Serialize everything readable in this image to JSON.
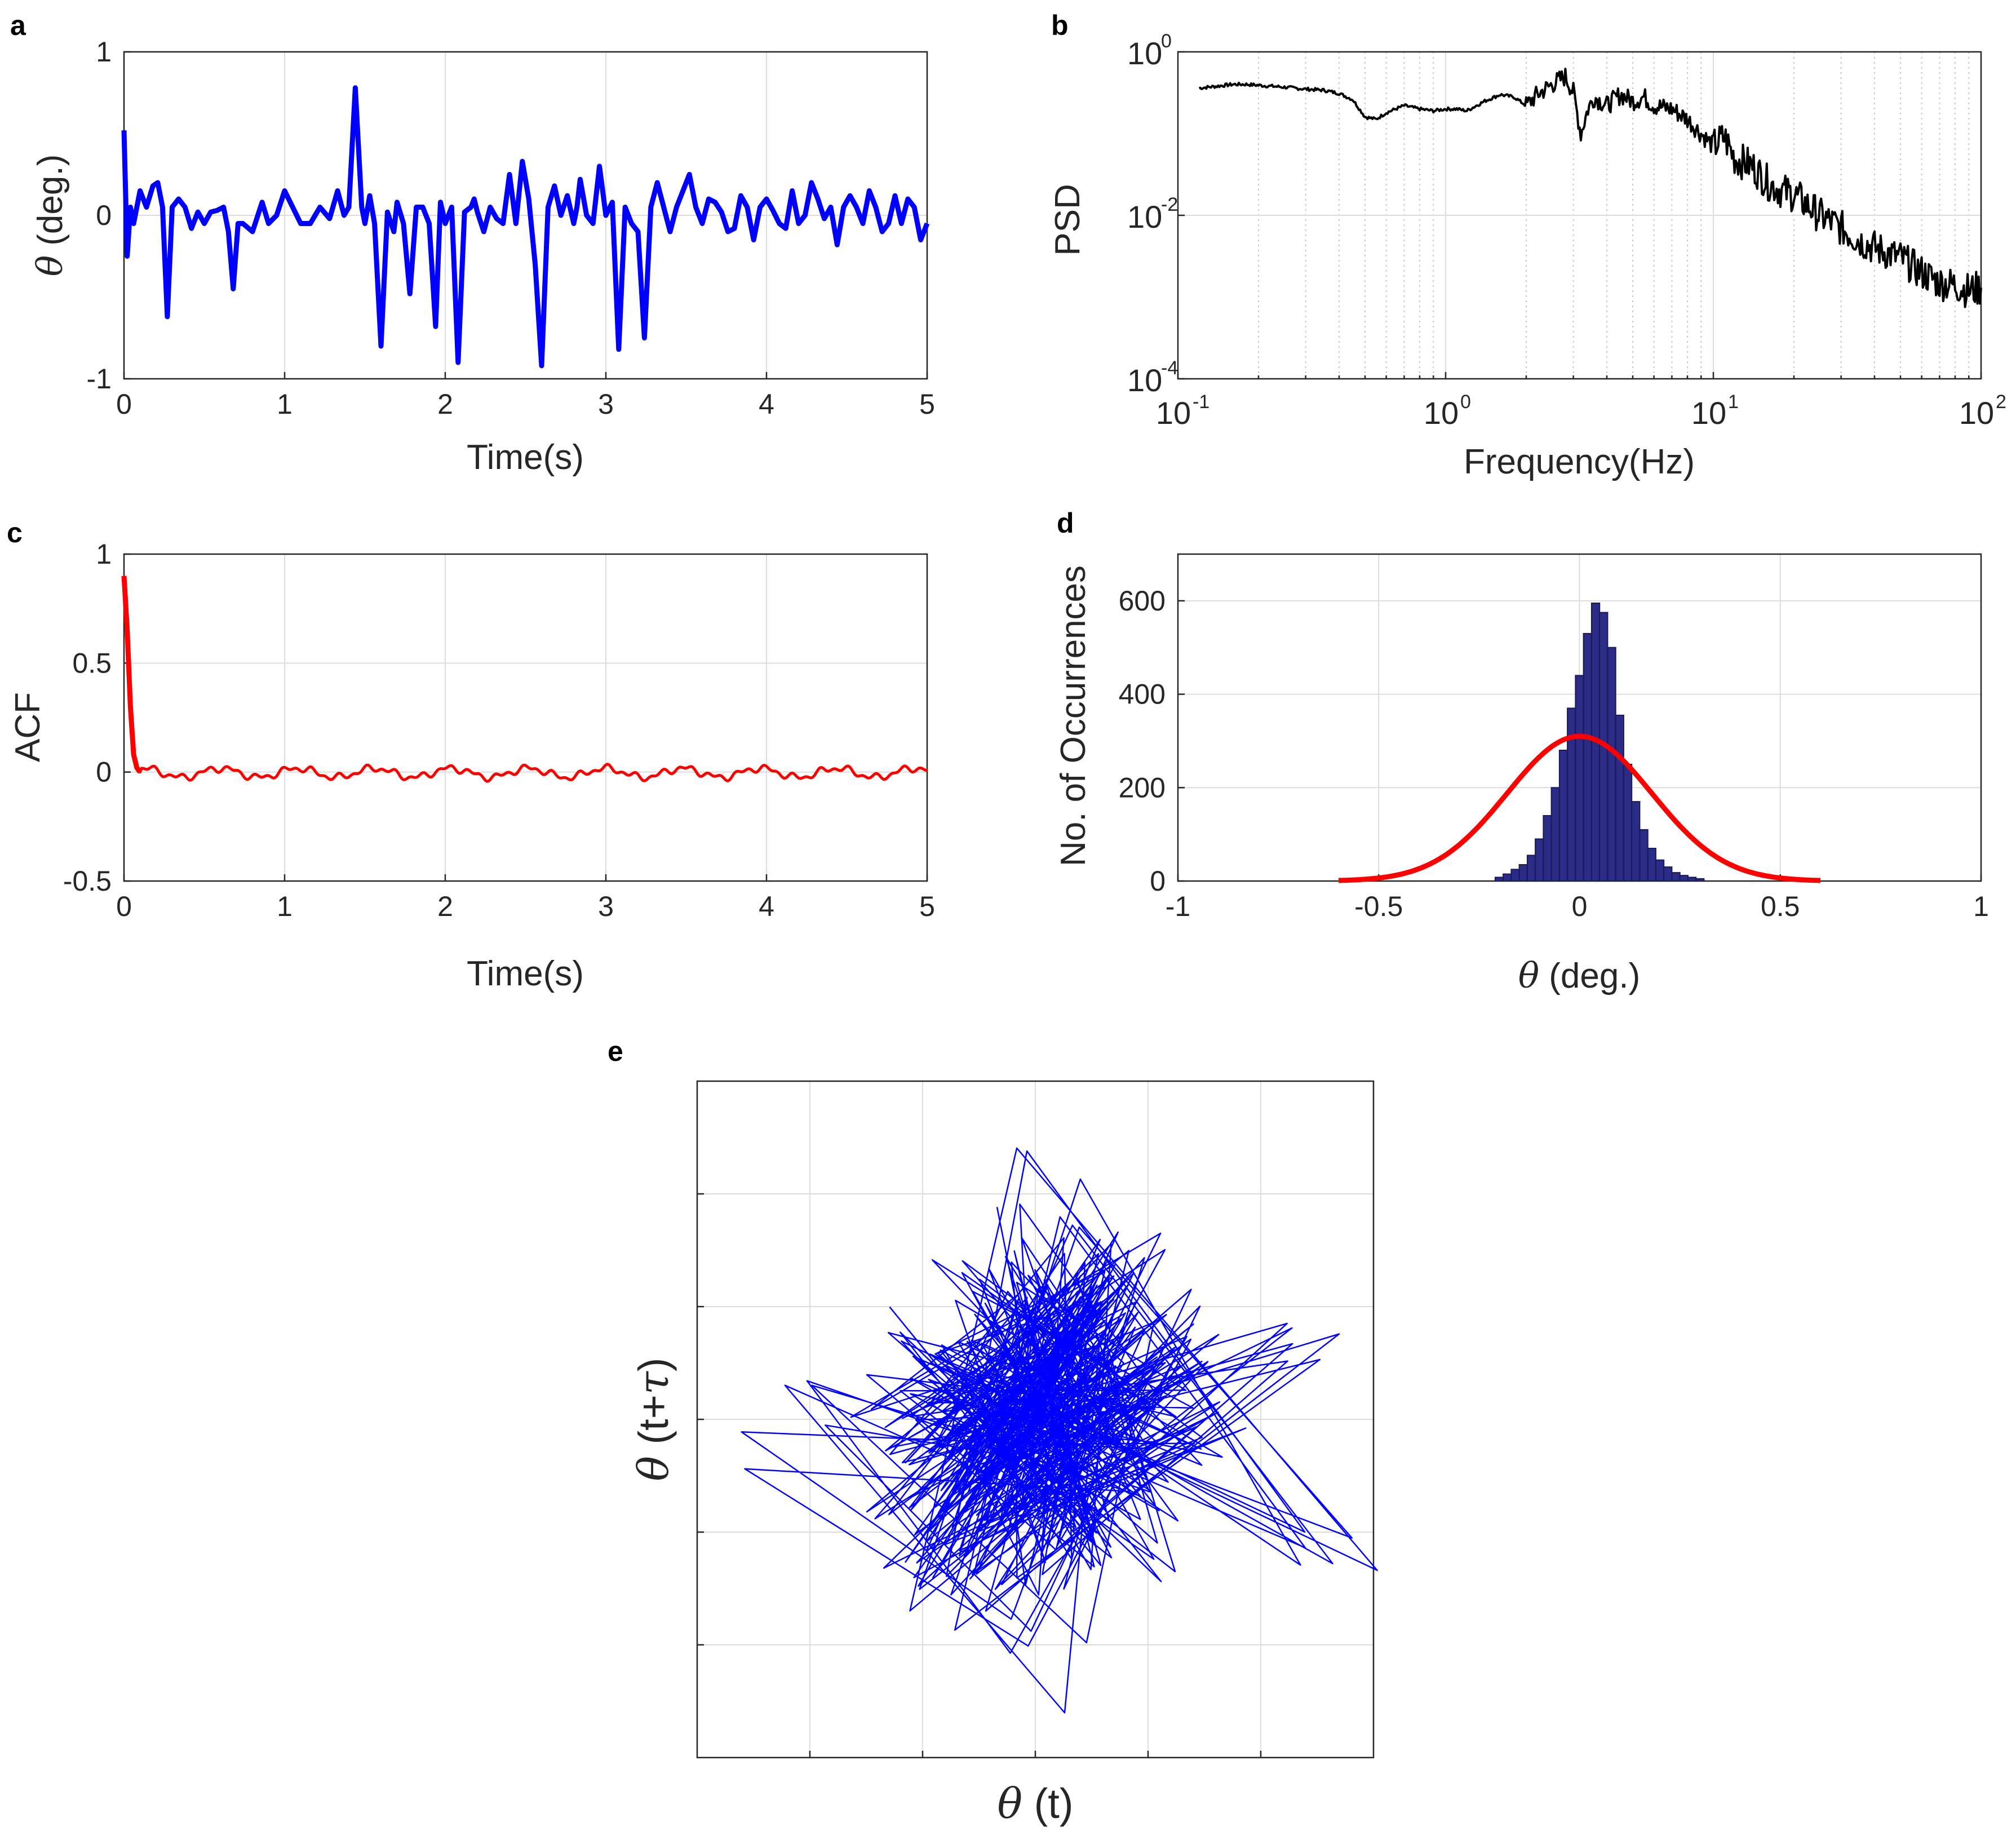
{
  "chart_data": [
    {
      "id": "a",
      "panel_letter": "a",
      "type": "line",
      "xlabel": "Time(s)",
      "ylabel_symbol": "θ",
      "ylabel_text": " (deg.)",
      "xlim": [
        0,
        5
      ],
      "ylim": [
        -1,
        1
      ],
      "xticks": [
        "0",
        "1",
        "2",
        "3",
        "4",
        "5"
      ],
      "yticks": [
        "-1",
        "0",
        "1"
      ],
      "color": "#0000ff",
      "series": [
        {
          "name": "theta",
          "x": [
            0,
            0.02,
            0.04,
            0.06,
            0.1,
            0.14,
            0.18,
            0.21,
            0.24,
            0.27,
            0.3,
            0.34,
            0.38,
            0.42,
            0.46,
            0.5,
            0.54,
            0.58,
            0.62,
            0.65,
            0.68,
            0.71,
            0.74,
            0.8,
            0.86,
            0.9,
            0.95,
            1.0,
            1.05,
            1.1,
            1.16,
            1.22,
            1.28,
            1.33,
            1.37,
            1.4,
            1.44,
            1.48,
            1.5,
            1.53,
            1.56,
            1.6,
            1.64,
            1.68,
            1.7,
            1.74,
            1.78,
            1.82,
            1.86,
            1.9,
            1.94,
            1.97,
            2.0,
            2.04,
            2.08,
            2.12,
            2.16,
            2.18,
            2.2,
            2.24,
            2.28,
            2.32,
            2.36,
            2.4,
            2.44,
            2.48,
            2.52,
            2.56,
            2.6,
            2.64,
            2.68,
            2.72,
            2.76,
            2.8,
            2.82,
            2.84,
            2.88,
            2.92,
            2.96,
            3.0,
            3.04,
            3.08,
            3.12,
            3.16,
            3.2,
            3.24,
            3.28,
            3.32,
            3.36,
            3.4,
            3.44,
            3.48,
            3.52,
            3.56,
            3.6,
            3.64,
            3.68,
            3.72,
            3.76,
            3.8,
            3.84,
            3.88,
            3.92,
            3.96,
            4.0,
            4.04,
            4.08,
            4.12,
            4.16,
            4.2,
            4.24,
            4.28,
            4.32,
            4.36,
            4.4,
            4.44,
            4.48,
            4.52,
            4.56,
            4.6,
            4.64,
            4.68,
            4.72,
            4.76,
            4.8,
            4.84,
            4.88,
            4.92,
            4.96,
            5.0
          ],
          "y": [
            0.52,
            -0.25,
            0.05,
            -0.05,
            0.15,
            0.05,
            0.18,
            0.2,
            0.05,
            -0.62,
            0.05,
            0.1,
            0.05,
            -0.08,
            0.02,
            -0.05,
            0.02,
            0.03,
            0.05,
            -0.1,
            -0.45,
            -0.05,
            -0.05,
            -0.1,
            0.08,
            -0.05,
            0.0,
            0.15,
            0.05,
            -0.05,
            -0.05,
            0.05,
            -0.02,
            0.15,
            0.0,
            0.05,
            0.78,
            0.05,
            -0.05,
            0.12,
            -0.05,
            -0.8,
            0.02,
            -0.1,
            0.08,
            -0.05,
            -0.48,
            0.05,
            0.05,
            -0.05,
            -0.68,
            0.08,
            -0.05,
            0.05,
            -0.9,
            0.02,
            0.05,
            0.1,
            0.02,
            -0.1,
            0.05,
            -0.02,
            -0.05,
            0.25,
            -0.05,
            0.33,
            0.1,
            -0.3,
            -0.92,
            0.05,
            0.18,
            0.0,
            0.12,
            -0.05,
            0.05,
            0.22,
            0.0,
            -0.05,
            0.3,
            0.0,
            0.08,
            -0.82,
            0.05,
            -0.05,
            -0.1,
            -0.75,
            0.05,
            0.2,
            0.05,
            -0.1,
            0.05,
            0.15,
            0.25,
            0.05,
            -0.05,
            0.1,
            0.08,
            0.02,
            -0.1,
            -0.08,
            0.12,
            0.05,
            -0.15,
            0.05,
            0.1,
            0.03,
            -0.05,
            -0.08,
            0.15,
            -0.05,
            0.0,
            0.2,
            0.1,
            -0.02,
            0.05,
            -0.18,
            0.05,
            0.12,
            0.05,
            -0.05,
            0.15,
            0.05,
            -0.1,
            -0.05,
            0.12,
            -0.05,
            0.1,
            0.05,
            -0.15,
            -0.05
          ]
        }
      ]
    },
    {
      "id": "b",
      "panel_letter": "b",
      "type": "line",
      "scale": "log-log",
      "xlabel": "Frequency(Hz)",
      "ylabel": "PSD",
      "xlim": [
        0.1,
        100
      ],
      "ylim": [
        0.0001,
        1
      ],
      "xtick_base": "10",
      "xtick_exps": [
        "-1",
        "0",
        "1",
        "2"
      ],
      "ytick_base": "10",
      "ytick_exps": [
        "-4",
        "-2",
        "0"
      ],
      "color": "#000000",
      "series": [
        {
          "name": "psd",
          "x": [
            0.12,
            0.14,
            0.16,
            0.18,
            0.2,
            0.25,
            0.3,
            0.35,
            0.4,
            0.45,
            0.5,
            0.55,
            0.6,
            0.7,
            0.8,
            0.9,
            1.0,
            1.1,
            1.2,
            1.4,
            1.6,
            1.8,
            2.0,
            2.2,
            2.5,
            2.8,
            3.0,
            3.2,
            3.4,
            3.6,
            4.0,
            4.5,
            5.0,
            5.5,
            6.0,
            7.0,
            8.0,
            9.0,
            10,
            11,
            12,
            14,
            16,
            18,
            20,
            25,
            30,
            35,
            40,
            50,
            60,
            70,
            80,
            90,
            100
          ],
          "y": [
            0.36,
            0.38,
            0.4,
            0.4,
            0.39,
            0.37,
            0.35,
            0.34,
            0.31,
            0.26,
            0.16,
            0.15,
            0.18,
            0.22,
            0.2,
            0.19,
            0.2,
            0.2,
            0.19,
            0.25,
            0.3,
            0.28,
            0.22,
            0.3,
            0.4,
            0.5,
            0.32,
            0.1,
            0.2,
            0.28,
            0.22,
            0.3,
            0.25,
            0.28,
            0.22,
            0.2,
            0.15,
            0.1,
            0.07,
            0.09,
            0.05,
            0.04,
            0.025,
            0.02,
            0.018,
            0.01,
            0.007,
            0.005,
            0.004,
            0.003,
            0.002,
            0.0015,
            0.0014,
            0.0012,
            0.0013
          ]
        }
      ]
    },
    {
      "id": "c",
      "panel_letter": "c",
      "type": "line",
      "xlabel": "Time(s)",
      "ylabel": "ACF",
      "xlim": [
        0,
        5
      ],
      "ylim": [
        -0.5,
        1
      ],
      "xticks": [
        "0",
        "1",
        "2",
        "3",
        "4",
        "5"
      ],
      "yticks": [
        "-0.5",
        "0",
        "0.5",
        "1"
      ],
      "color": "#ff0000",
      "series": [
        {
          "name": "acf",
          "x": [
            0,
            0.02,
            0.04,
            0.06,
            0.08,
            0.1
          ],
          "y": [
            0.9,
            0.65,
            0.3,
            0.08,
            0.02,
            0.0
          ],
          "tail_mean": 0.0,
          "tail_amplitude": 0.035
        }
      ]
    },
    {
      "id": "d",
      "panel_letter": "d",
      "type": "bar",
      "xlabel_symbol": "θ",
      "xlabel_text": " (deg.)",
      "ylabel": "No. of Occurrences",
      "xlim": [
        -1,
        1
      ],
      "ylim": [
        0,
        700
      ],
      "xticks": [
        "-1",
        "-0.5",
        "0",
        "0.5",
        "1"
      ],
      "yticks": [
        "0",
        "200",
        "400",
        "600"
      ],
      "bar_color": "#2b2b88",
      "fit_color": "#ff0000",
      "bin_width": 0.02,
      "bin_centers": [
        -0.2,
        -0.18,
        -0.16,
        -0.14,
        -0.12,
        -0.1,
        -0.08,
        -0.06,
        -0.04,
        -0.02,
        0.0,
        0.02,
        0.04,
        0.06,
        0.08,
        0.1,
        0.12,
        0.14,
        0.16,
        0.18,
        0.2,
        0.22,
        0.24,
        0.26,
        0.28,
        0.3
      ],
      "values": [
        8,
        15,
        25,
        35,
        55,
        90,
        140,
        200,
        280,
        370,
        440,
        530,
        595,
        575,
        500,
        355,
        250,
        170,
        110,
        70,
        45,
        30,
        18,
        12,
        8,
        5
      ],
      "fit": {
        "type": "gaussian",
        "peak": 310,
        "mean": 0.0,
        "sigma": 0.18,
        "x_range": [
          -0.6,
          0.6
        ]
      }
    },
    {
      "id": "e",
      "panel_letter": "e",
      "type": "line",
      "xlabel_symbol": "θ",
      "xlabel_text": " (t)",
      "ylabel_symbol": "θ",
      "ylabel_text": " (t+",
      "ylabel_tau": "τ",
      "ylabel_close": ")",
      "xlim": [
        -3,
        3
      ],
      "ylim": [
        -3,
        3
      ],
      "color": "#0000ff",
      "series": [
        {
          "name": "phase",
          "x": [
            -0.5,
            0.4,
            -1.1,
            0.9,
            -0.3,
            1.2,
            -0.8,
            0.1,
            0.7,
            -1.3,
            0.2,
            1.0,
            -0.6,
            0.5,
            -0.2,
            1.4,
            -1.0,
            0.3,
            -0.4,
            0.8,
            -1.2,
            0.6,
            -0.1,
            1.1,
            -0.7,
            0.0,
            2.8,
            -0.9,
            0.4,
            -0.5,
            1.3,
            -1.4,
            0.9,
            -0.3,
            0.6,
            -2.3,
            0.2,
            1.0,
            -0.8,
            0.5,
            -1.1,
            0.7,
            -0.2,
            1.2,
            -0.6,
            0.3,
            -1.0,
            2.4,
            -0.4,
            0.1,
            -1.2,
            0.8,
            -0.1,
            1.5,
            -0.7,
            0.4,
            -0.9,
            0.6,
            -0.3,
            1.1
          ],
          "y": [
            1.6,
            -0.5,
            0.8,
            -1.2,
            1.1,
            -0.3,
            0.4,
            -1.5,
            1.3,
            -0.2,
            0.9,
            -1.0,
            0.3,
            1.4,
            -0.8,
            0.6,
            -1.3,
            1.0,
            -0.4,
            0.7,
            -1.1,
            1.2,
            -0.6,
            0.2,
            -1.4,
            2.1,
            -1.2,
            0.5,
            -0.9,
            1.5,
            -0.1,
            0.6,
            -1.0,
            1.1,
            -0.5,
            0.0,
            -2.3,
            0.9,
            -0.3,
            1.3,
            -0.7,
            0.4,
            -1.2,
            0.8,
            -0.6,
            1.0,
            -0.2,
            0.7,
            -1.6,
            0.5,
            -0.4,
            1.2,
            -0.8,
            0.3,
            -1.1,
            0.9,
            -0.5,
            1.4,
            -0.9,
            0.2
          ]
        }
      ]
    }
  ]
}
